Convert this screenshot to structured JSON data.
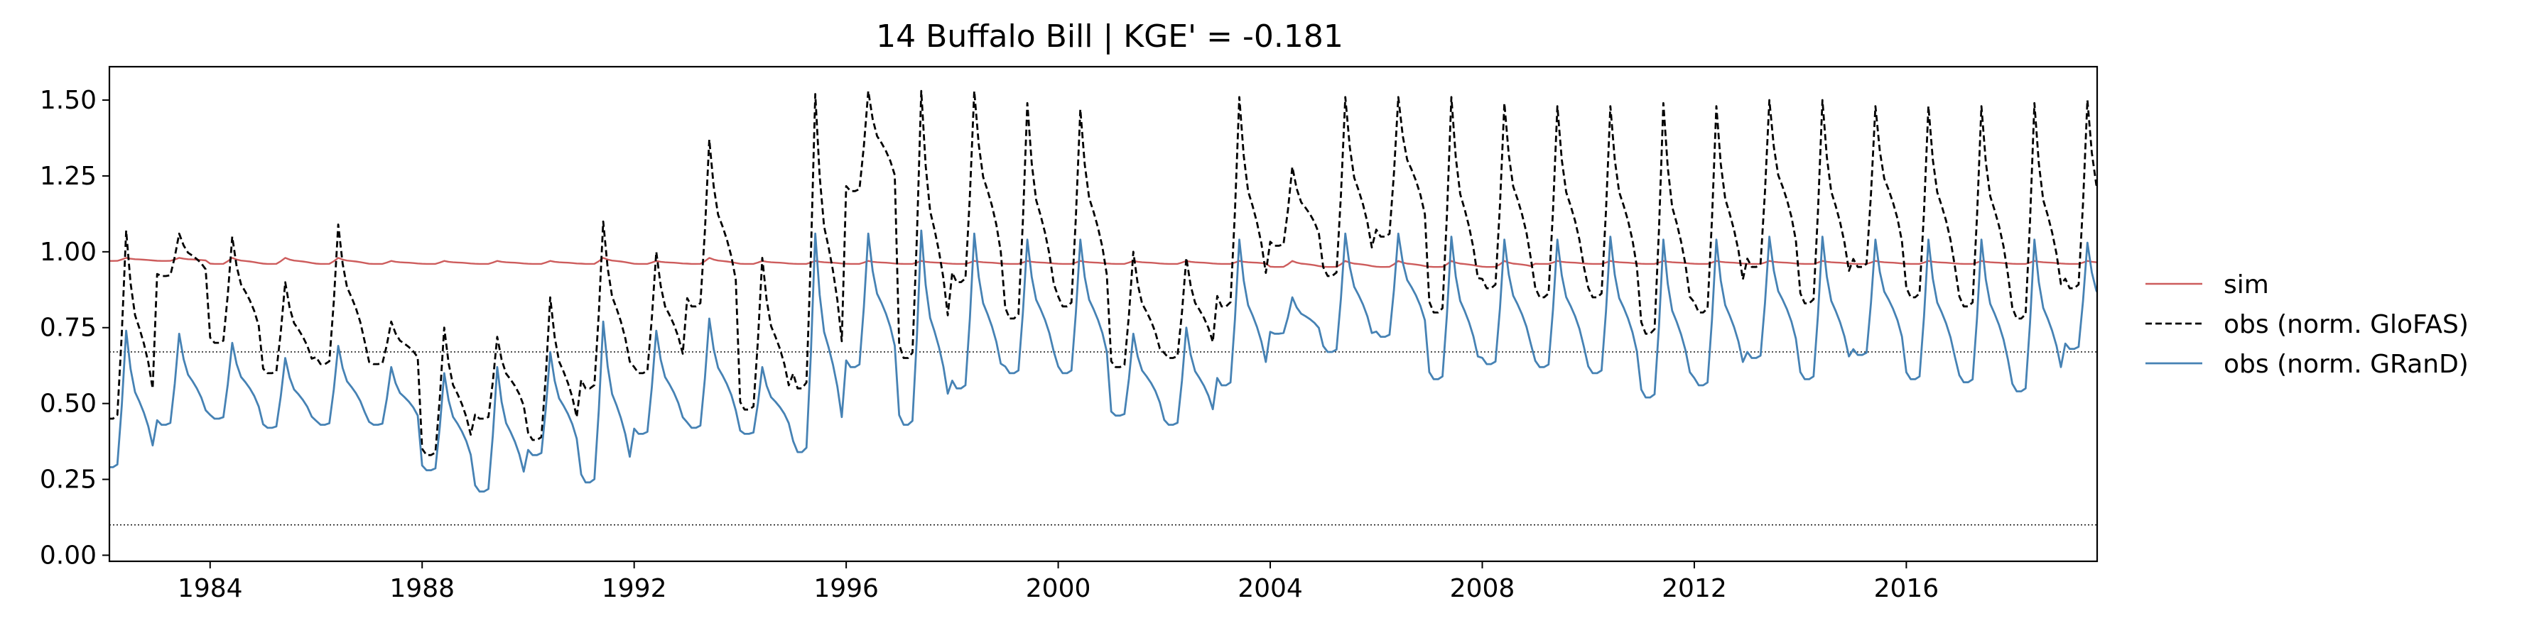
{
  "chart_data": {
    "type": "line",
    "title": "14  Buffalo Bill | KGE' = -0.181",
    "xlim": [
      1982.1,
      2019.6
    ],
    "ylim": [
      -0.02,
      1.61
    ],
    "x_ticks": [
      1984,
      1988,
      1992,
      1996,
      2000,
      2004,
      2008,
      2012,
      2016
    ],
    "y_ticks": [
      0.0,
      0.25,
      0.5,
      0.75,
      1.0,
      1.25,
      1.5
    ],
    "y_tick_labels": [
      "0.00",
      "0.25",
      "0.50",
      "0.75",
      "1.00",
      "1.25",
      "1.50"
    ],
    "reference_lines": [
      0.67,
      0.1
    ],
    "legend_position": "right",
    "grid": false,
    "series": [
      {
        "name": "sim",
        "color": "#cd5c5c",
        "style": "solid",
        "yearly": [
          {
            "year": 1982,
            "base": 0.97,
            "peak": 0.98
          },
          {
            "year": 1983,
            "base": 0.97,
            "peak": 0.98
          },
          {
            "year": 1984,
            "base": 0.96,
            "peak": 0.98
          },
          {
            "year": 1985,
            "base": 0.96,
            "peak": 0.98
          },
          {
            "year": 1986,
            "base": 0.96,
            "peak": 0.98
          },
          {
            "year": 1987,
            "base": 0.96,
            "peak": 0.97
          },
          {
            "year": 1988,
            "base": 0.96,
            "peak": 0.97
          },
          {
            "year": 1989,
            "base": 0.96,
            "peak": 0.97
          },
          {
            "year": 1990,
            "base": 0.96,
            "peak": 0.97
          },
          {
            "year": 1991,
            "base": 0.96,
            "peak": 0.98
          },
          {
            "year": 1992,
            "base": 0.96,
            "peak": 0.97
          },
          {
            "year": 1993,
            "base": 0.96,
            "peak": 0.98
          },
          {
            "year": 1994,
            "base": 0.96,
            "peak": 0.97
          },
          {
            "year": 1995,
            "base": 0.96,
            "peak": 0.97
          },
          {
            "year": 1996,
            "base": 0.96,
            "peak": 0.97
          },
          {
            "year": 1997,
            "base": 0.96,
            "peak": 0.97
          },
          {
            "year": 1998,
            "base": 0.96,
            "peak": 0.97
          },
          {
            "year": 1999,
            "base": 0.96,
            "peak": 0.97
          },
          {
            "year": 2000,
            "base": 0.96,
            "peak": 0.97
          },
          {
            "year": 2001,
            "base": 0.96,
            "peak": 0.97
          },
          {
            "year": 2002,
            "base": 0.96,
            "peak": 0.97
          },
          {
            "year": 2003,
            "base": 0.96,
            "peak": 0.97
          },
          {
            "year": 2004,
            "base": 0.95,
            "peak": 0.97
          },
          {
            "year": 2005,
            "base": 0.95,
            "peak": 0.97
          },
          {
            "year": 2006,
            "base": 0.95,
            "peak": 0.97
          },
          {
            "year": 2007,
            "base": 0.95,
            "peak": 0.97
          },
          {
            "year": 2008,
            "base": 0.95,
            "peak": 0.97
          },
          {
            "year": 2009,
            "base": 0.96,
            "peak": 0.97
          },
          {
            "year": 2010,
            "base": 0.96,
            "peak": 0.97
          },
          {
            "year": 2011,
            "base": 0.96,
            "peak": 0.97
          },
          {
            "year": 2012,
            "base": 0.96,
            "peak": 0.97
          },
          {
            "year": 2013,
            "base": 0.96,
            "peak": 0.97
          },
          {
            "year": 2014,
            "base": 0.96,
            "peak": 0.97
          },
          {
            "year": 2015,
            "base": 0.96,
            "peak": 0.97
          },
          {
            "year": 2016,
            "base": 0.96,
            "peak": 0.97
          },
          {
            "year": 2017,
            "base": 0.96,
            "peak": 0.97
          },
          {
            "year": 2018,
            "base": 0.96,
            "peak": 0.97
          },
          {
            "year": 2019,
            "base": 0.96,
            "peak": 0.97
          }
        ]
      },
      {
        "name": "obs (norm. GloFAS)",
        "color": "#000000",
        "style": "dashed",
        "yearly": [
          {
            "year": 1982,
            "base": 0.45,
            "peak": 1.07
          },
          {
            "year": 1983,
            "base": 0.92,
            "peak": 1.06
          },
          {
            "year": 1984,
            "base": 0.7,
            "peak": 1.05
          },
          {
            "year": 1985,
            "base": 0.6,
            "peak": 0.9
          },
          {
            "year": 1986,
            "base": 0.63,
            "peak": 1.09
          },
          {
            "year": 1987,
            "base": 0.63,
            "peak": 0.77
          },
          {
            "year": 1988,
            "base": 0.33,
            "peak": 0.75
          },
          {
            "year": 1989,
            "base": 0.45,
            "peak": 0.72
          },
          {
            "year": 1990,
            "base": 0.38,
            "peak": 0.85
          },
          {
            "year": 1991,
            "base": 0.55,
            "peak": 1.1
          },
          {
            "year": 1992,
            "base": 0.6,
            "peak": 1.0
          },
          {
            "year": 1993,
            "base": 0.82,
            "peak": 1.37
          },
          {
            "year": 1994,
            "base": 0.48,
            "peak": 0.98
          },
          {
            "year": 1995,
            "base": 0.55,
            "peak": 1.52
          },
          {
            "year": 1996,
            "base": 1.2,
            "peak": 1.53
          },
          {
            "year": 1997,
            "base": 0.65,
            "peak": 1.53
          },
          {
            "year": 1998,
            "base": 0.9,
            "peak": 1.53
          },
          {
            "year": 1999,
            "base": 0.78,
            "peak": 1.49
          },
          {
            "year": 2000,
            "base": 0.82,
            "peak": 1.47
          },
          {
            "year": 2001,
            "base": 0.62,
            "peak": 1.0
          },
          {
            "year": 2002,
            "base": 0.65,
            "peak": 0.98
          },
          {
            "year": 2003,
            "base": 0.82,
            "peak": 1.51
          },
          {
            "year": 2004,
            "base": 1.02,
            "peak": 1.28
          },
          {
            "year": 2005,
            "base": 0.92,
            "peak": 1.51
          },
          {
            "year": 2006,
            "base": 1.05,
            "peak": 1.51
          },
          {
            "year": 2007,
            "base": 0.8,
            "peak": 1.51
          },
          {
            "year": 2008,
            "base": 0.88,
            "peak": 1.49
          },
          {
            "year": 2009,
            "base": 0.85,
            "peak": 1.48
          },
          {
            "year": 2010,
            "base": 0.85,
            "peak": 1.48
          },
          {
            "year": 2011,
            "base": 0.73,
            "peak": 1.49
          },
          {
            "year": 2012,
            "base": 0.8,
            "peak": 1.48
          },
          {
            "year": 2013,
            "base": 0.95,
            "peak": 1.5
          },
          {
            "year": 2014,
            "base": 0.83,
            "peak": 1.5
          },
          {
            "year": 2015,
            "base": 0.95,
            "peak": 1.48
          },
          {
            "year": 2016,
            "base": 0.85,
            "peak": 1.48
          },
          {
            "year": 2017,
            "base": 0.82,
            "peak": 1.48
          },
          {
            "year": 2018,
            "base": 0.78,
            "peak": 1.49
          },
          {
            "year": 2019,
            "base": 0.88,
            "peak": 1.5
          }
        ]
      },
      {
        "name": "obs (norm. GRanD)",
        "color": "#4682b4",
        "style": "solid",
        "yearly": [
          {
            "year": 1982,
            "base": 0.29,
            "peak": 0.74
          },
          {
            "year": 1983,
            "base": 0.43,
            "peak": 0.73
          },
          {
            "year": 1984,
            "base": 0.45,
            "peak": 0.7
          },
          {
            "year": 1985,
            "base": 0.42,
            "peak": 0.65
          },
          {
            "year": 1986,
            "base": 0.43,
            "peak": 0.69
          },
          {
            "year": 1987,
            "base": 0.43,
            "peak": 0.62
          },
          {
            "year": 1988,
            "base": 0.28,
            "peak": 0.6
          },
          {
            "year": 1989,
            "base": 0.21,
            "peak": 0.62
          },
          {
            "year": 1990,
            "base": 0.33,
            "peak": 0.67
          },
          {
            "year": 1991,
            "base": 0.24,
            "peak": 0.77
          },
          {
            "year": 1992,
            "base": 0.4,
            "peak": 0.74
          },
          {
            "year": 1993,
            "base": 0.42,
            "peak": 0.78
          },
          {
            "year": 1994,
            "base": 0.4,
            "peak": 0.62
          },
          {
            "year": 1995,
            "base": 0.34,
            "peak": 1.06
          },
          {
            "year": 1996,
            "base": 0.62,
            "peak": 1.06
          },
          {
            "year": 1997,
            "base": 0.43,
            "peak": 1.07
          },
          {
            "year": 1998,
            "base": 0.55,
            "peak": 1.06
          },
          {
            "year": 1999,
            "base": 0.6,
            "peak": 1.04
          },
          {
            "year": 2000,
            "base": 0.6,
            "peak": 1.04
          },
          {
            "year": 2001,
            "base": 0.46,
            "peak": 0.73
          },
          {
            "year": 2002,
            "base": 0.43,
            "peak": 0.75
          },
          {
            "year": 2003,
            "base": 0.56,
            "peak": 1.04
          },
          {
            "year": 2004,
            "base": 0.73,
            "peak": 0.85
          },
          {
            "year": 2005,
            "base": 0.67,
            "peak": 1.06
          },
          {
            "year": 2006,
            "base": 0.72,
            "peak": 1.06
          },
          {
            "year": 2007,
            "base": 0.58,
            "peak": 1.05
          },
          {
            "year": 2008,
            "base": 0.63,
            "peak": 1.04
          },
          {
            "year": 2009,
            "base": 0.62,
            "peak": 1.04
          },
          {
            "year": 2010,
            "base": 0.6,
            "peak": 1.05
          },
          {
            "year": 2011,
            "base": 0.52,
            "peak": 1.04
          },
          {
            "year": 2012,
            "base": 0.56,
            "peak": 1.04
          },
          {
            "year": 2013,
            "base": 0.65,
            "peak": 1.05
          },
          {
            "year": 2014,
            "base": 0.58,
            "peak": 1.05
          },
          {
            "year": 2015,
            "base": 0.66,
            "peak": 1.04
          },
          {
            "year": 2016,
            "base": 0.58,
            "peak": 1.04
          },
          {
            "year": 2017,
            "base": 0.57,
            "peak": 1.04
          },
          {
            "year": 2018,
            "base": 0.54,
            "peak": 1.04
          },
          {
            "year": 2019,
            "base": 0.68,
            "peak": 1.03
          }
        ]
      }
    ]
  }
}
